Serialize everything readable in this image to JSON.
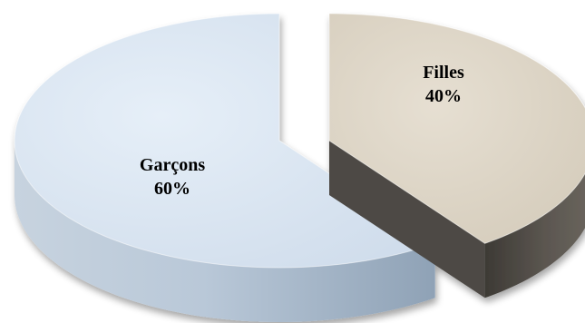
{
  "chart_data": {
    "type": "pie",
    "title": "",
    "slices": [
      {
        "label": "Garçons",
        "value": 60,
        "value_label": "60%",
        "color": "#dbe7f4",
        "side_color": "#a4b6c8"
      },
      {
        "label": "Filles",
        "value": 40,
        "value_label": "40%",
        "color": "#ddd5c6",
        "side_color": "#4e4a44"
      }
    ],
    "style": "3d-exploded",
    "legend": "none"
  }
}
